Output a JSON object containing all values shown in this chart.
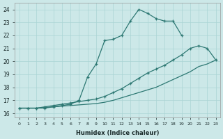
{
  "xlabel": "Humidex (Indice chaleur)",
  "bg_color": "#cce8e8",
  "line_color": "#2d7873",
  "grid_color": "#aad4d4",
  "xlim": [
    -0.5,
    23.5
  ],
  "ylim": [
    15.7,
    24.5
  ],
  "xticks": [
    0,
    1,
    2,
    3,
    4,
    5,
    6,
    7,
    8,
    9,
    10,
    11,
    12,
    13,
    14,
    15,
    16,
    17,
    18,
    19,
    20,
    21,
    22,
    23
  ],
  "yticks": [
    16,
    17,
    18,
    19,
    20,
    21,
    22,
    23,
    24
  ],
  "line1_x": [
    0,
    1,
    2,
    3,
    4,
    5,
    6,
    7,
    8,
    9,
    10,
    11,
    12,
    13,
    14,
    15,
    16,
    17,
    18,
    19
  ],
  "line1_y": [
    16.4,
    16.4,
    16.4,
    16.4,
    16.5,
    16.6,
    16.7,
    17.0,
    18.8,
    19.8,
    21.6,
    21.7,
    22.0,
    23.1,
    24.0,
    23.7,
    23.3,
    23.1,
    23.1,
    22.0
  ],
  "line2_x": [
    0,
    1,
    2,
    3,
    4,
    5,
    6,
    7,
    8,
    9,
    10,
    11,
    12,
    13,
    14,
    15,
    16,
    17,
    18,
    19,
    20,
    21,
    22,
    23
  ],
  "line2_y": [
    16.4,
    16.4,
    16.4,
    16.5,
    16.6,
    16.7,
    16.8,
    16.9,
    17.0,
    17.1,
    17.3,
    17.6,
    17.9,
    18.3,
    18.7,
    19.1,
    19.4,
    19.7,
    20.1,
    20.5,
    21.0,
    21.2,
    21.0,
    20.1
  ],
  "line3_x": [
    0,
    1,
    2,
    3,
    4,
    5,
    6,
    7,
    8,
    9,
    10,
    11,
    12,
    13,
    14,
    15,
    16,
    17,
    18,
    19,
    20,
    21,
    22,
    23
  ],
  "line3_y": [
    16.4,
    16.4,
    16.4,
    16.45,
    16.5,
    16.55,
    16.6,
    16.65,
    16.7,
    16.75,
    16.85,
    17.0,
    17.2,
    17.4,
    17.6,
    17.8,
    18.0,
    18.3,
    18.6,
    18.9,
    19.2,
    19.6,
    19.8,
    20.1
  ]
}
